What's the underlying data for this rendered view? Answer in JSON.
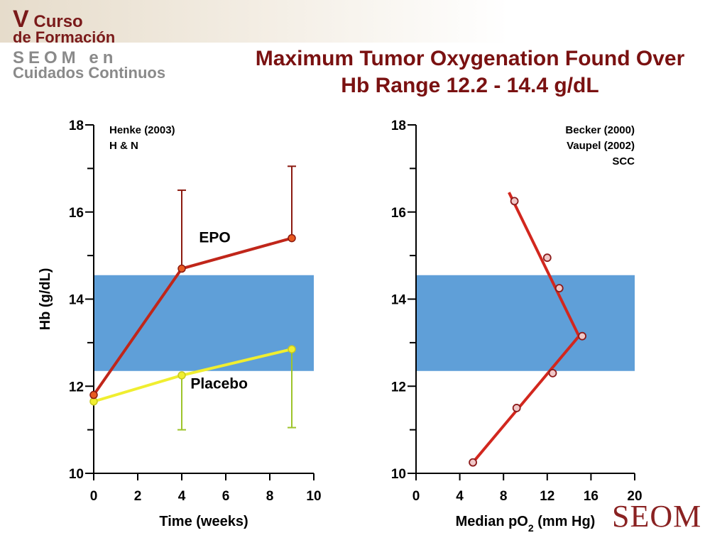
{
  "logo": {
    "line1_big": "V",
    "line1_rest": " Curso",
    "line2": "de Formación",
    "line3": "SEOM en",
    "line4": "Cuidados Continuos"
  },
  "title": {
    "line1": "Maximum Tumor Oxygenation Found Over",
    "line2": "Hb Range 12.2 - 14.4 g/dL"
  },
  "brand": "SEOM",
  "colors": {
    "title": "#7a1111",
    "epo": "#c0261a",
    "epo_error": "#8b1a10",
    "placebo": "#f0ee30",
    "placebo_error": "#9ec42a",
    "band": "#5f9fd8",
    "po2_line": "#d2271e"
  },
  "chart_data": [
    {
      "type": "line",
      "notes": [
        "Henke (2003)",
        "H & N"
      ],
      "xlabel": "Time (weeks)",
      "ylabel": "Hb (g/dL)",
      "xlim": [
        0,
        10
      ],
      "ylim": [
        10,
        18
      ],
      "x_ticks": [
        0,
        2,
        4,
        6,
        8,
        10
      ],
      "x_tick_labels": [
        "0",
        "2",
        "4",
        "6",
        "8",
        "10"
      ],
      "y_ticks": [
        10,
        12,
        14,
        16,
        18
      ],
      "y_tick_labels": [
        "10",
        "12",
        "14",
        "16",
        "18"
      ],
      "band": [
        12.35,
        14.55
      ],
      "series": [
        {
          "name": "EPO",
          "x": [
            0,
            4,
            9
          ],
          "y": [
            11.8,
            14.7,
            15.4
          ],
          "error_upper": [
            null,
            16.5,
            17.05
          ]
        },
        {
          "name": "Placebo",
          "x": [
            0,
            4,
            9
          ],
          "y": [
            11.65,
            12.25,
            12.85
          ],
          "error_lower": [
            null,
            11.0,
            11.05
          ]
        }
      ]
    },
    {
      "type": "line",
      "notes": [
        "Becker (2000)",
        "Vaupel (2002)",
        "SCC"
      ],
      "xlabel": "Median pO",
      "xlabel_sub": "2",
      "xlabel_units": " (mm Hg)",
      "ylabel": "",
      "xlim": [
        0,
        20
      ],
      "ylim": [
        10,
        18
      ],
      "x_ticks": [
        0,
        4,
        8,
        12,
        16,
        20
      ],
      "x_tick_labels": [
        "0",
        "4",
        "8",
        "12",
        "16",
        "20"
      ],
      "y_ticks": [
        10,
        12,
        14,
        16,
        18
      ],
      "y_tick_labels": [
        "10",
        "12",
        "14",
        "16",
        "18"
      ],
      "band": [
        12.35,
        14.55
      ],
      "line": {
        "x": [
          5.2,
          14.9,
          8.5
        ],
        "y": [
          10.25,
          13.15,
          16.45
        ]
      },
      "points": [
        {
          "x": 5.2,
          "y": 10.25
        },
        {
          "x": 9.2,
          "y": 11.5
        },
        {
          "x": 12.5,
          "y": 12.3
        },
        {
          "x": 15.2,
          "y": 13.15
        },
        {
          "x": 13.1,
          "y": 14.25
        },
        {
          "x": 12.0,
          "y": 14.95
        },
        {
          "x": 9.0,
          "y": 16.25
        }
      ]
    }
  ]
}
